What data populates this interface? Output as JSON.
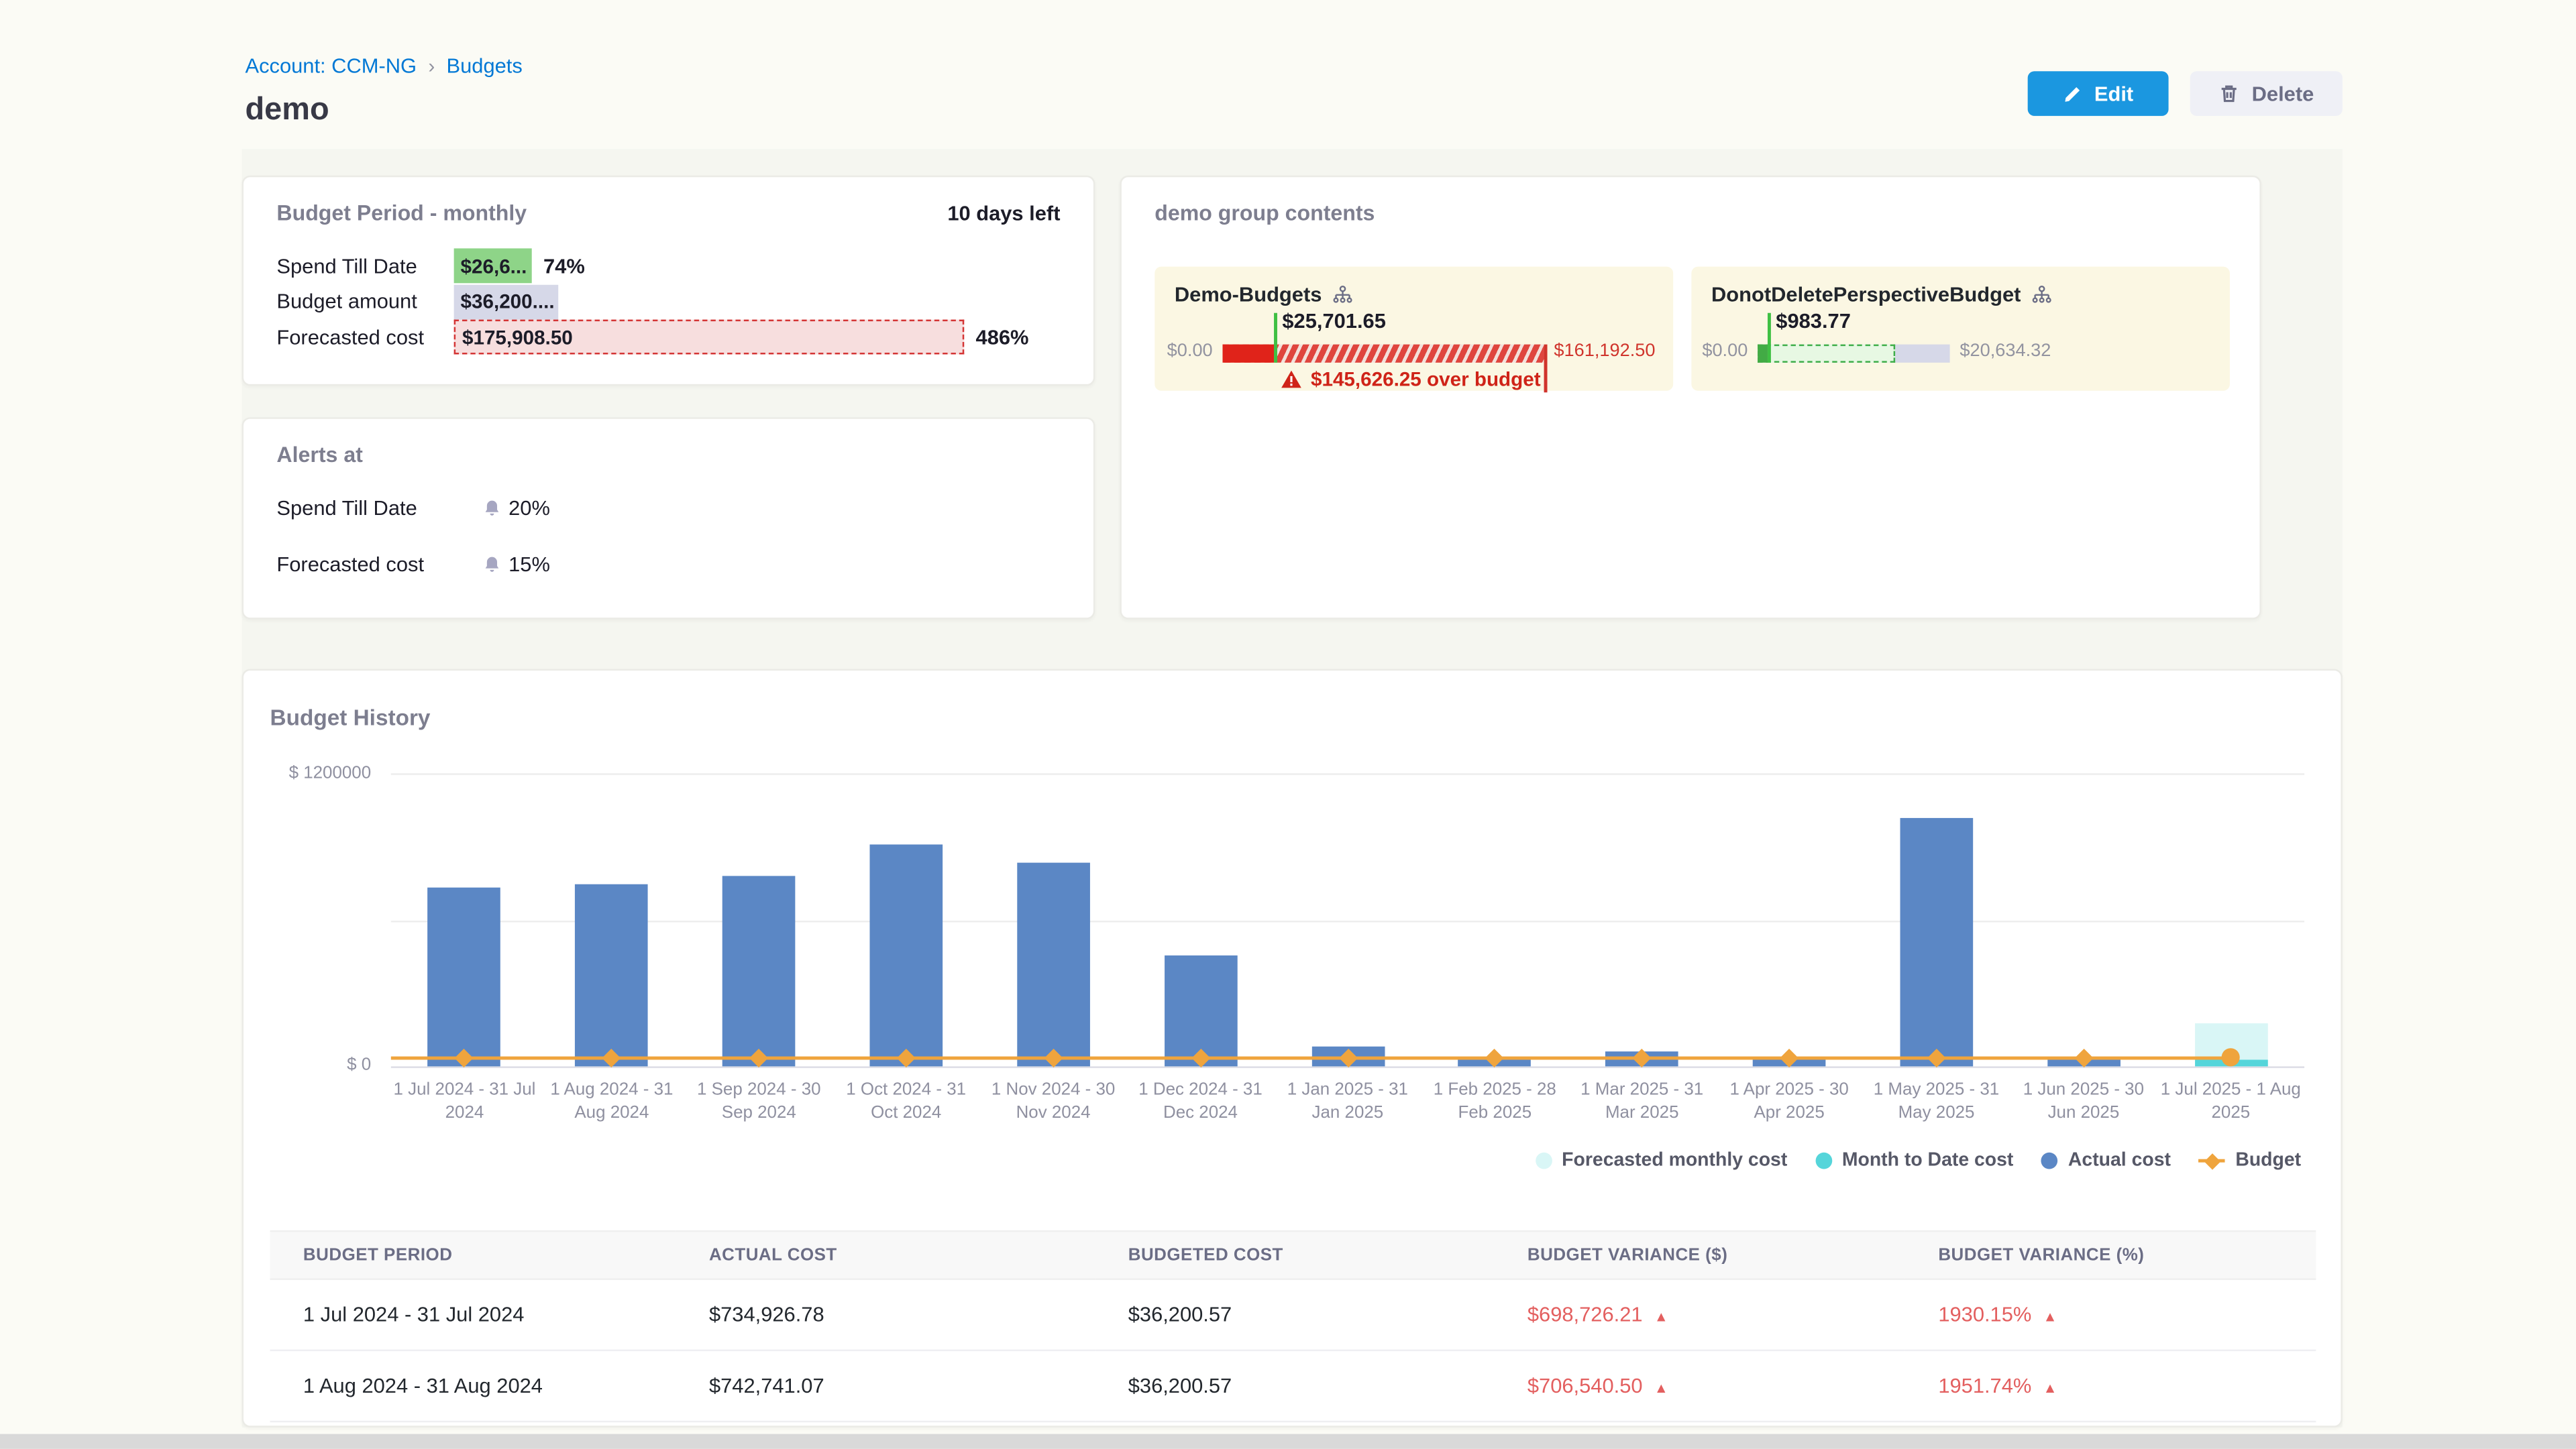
{
  "breadcrumb": {
    "account": "Account: CCM-NG",
    "separator": "›",
    "section": "Budgets"
  },
  "page": {
    "title": "demo"
  },
  "actions": {
    "edit_label": "Edit",
    "delete_label": "Delete"
  },
  "budget_period_card": {
    "title": "Budget Period - monthly",
    "days_left": "10 days left",
    "max_amount": 175908.5,
    "rows": [
      {
        "label": "Spend Till Date",
        "value": "$26,6...",
        "amount": 26600,
        "percent": "74%",
        "type": "green"
      },
      {
        "label": "Budget amount",
        "value": "$36,200....",
        "amount": 36200.57,
        "percent": "",
        "type": "lavender"
      },
      {
        "label": "Forecasted cost",
        "value": "$175,908.50",
        "amount": 175908.5,
        "percent": "486%",
        "type": "pink"
      }
    ]
  },
  "group_card": {
    "title": "demo group contents",
    "items": [
      {
        "name": "Demo-Budgets",
        "value": "$25,701.65",
        "actual": 25701.65,
        "forecast": 161192.5,
        "max": 161192.5,
        "min_label": "$0.00",
        "max_label": "$161,192.50",
        "state": "over",
        "over_label": "$145,626.25 over budget"
      },
      {
        "name": "DonotDeletePerspectiveBudget",
        "value": "$983.77",
        "actual": 983.77,
        "forecast": 14760,
        "max": 20634.32,
        "min_label": "$0.00",
        "max_label": "$20,634.32",
        "state": "under",
        "over_label": ""
      }
    ]
  },
  "alerts_card": {
    "title": "Alerts at",
    "rows": [
      {
        "label": "Spend Till Date",
        "value": "20%"
      },
      {
        "label": "Forecasted cost",
        "value": "15%"
      }
    ]
  },
  "chart_data": {
    "type": "bar",
    "title": "Budget History",
    "categories": [
      "1 Jul 2024 - 31 Jul 2024",
      "1 Aug 2024 - 31 Aug 2024",
      "1 Sep 2024 - 30 Sep 2024",
      "1 Oct 2024 - 31 Oct 2024",
      "1 Nov 2024 - 30 Nov 2024",
      "1 Dec 2024 - 31 Dec 2024",
      "1 Jan 2025 - 31 Jan 2025",
      "1 Feb 2025 - 28 Feb 2025",
      "1 Mar 2025 - 31 Mar 2025",
      "1 Apr 2025 - 30 Apr 2025",
      "1 May 2025 - 31 May 2025",
      "1 Jun 2025 - 30 Jun 2025",
      "1 Jul 2025 - 1 Aug 2025"
    ],
    "series": [
      {
        "name": "Forecasted monthly cost",
        "color": "#d9f6f6",
        "marker": "circle",
        "values": [
          0,
          0,
          0,
          0,
          0,
          0,
          0,
          0,
          0,
          0,
          0,
          0,
          175908.5
        ]
      },
      {
        "name": "Month to Date cost",
        "color": "#55d5da",
        "marker": "circle",
        "values": [
          0,
          0,
          0,
          0,
          0,
          0,
          0,
          0,
          0,
          0,
          0,
          0,
          26600
        ]
      },
      {
        "name": "Actual cost",
        "color": "#5b87c5",
        "marker": "circle",
        "values": [
          734926.78,
          742741.07,
          778000,
          906000,
          833000,
          455000,
          80000,
          30000,
          64000,
          34000,
          1020000,
          30000,
          0
        ]
      },
      {
        "name": "Budget",
        "color": "#efa43d",
        "marker": "diamond-line",
        "type": "line",
        "values": [
          36200.57,
          36200.57,
          36200.57,
          36200.57,
          36200.57,
          36200.57,
          36200.57,
          36200.57,
          36200.57,
          36200.57,
          36200.57,
          36200.57,
          36200.57
        ]
      }
    ],
    "ylim": [
      0,
      1200000
    ],
    "gridlines": [
      600000,
      1200000
    ],
    "y_axis": {
      "top_label": "$ 1200000",
      "zero_label": "$ 0"
    },
    "legend_position": "bottom-right",
    "xlabel": "",
    "ylabel": ""
  },
  "table": {
    "columns": [
      "BUDGET PERIOD",
      "ACTUAL COST",
      "BUDGETED COST",
      "BUDGET VARIANCE ($)",
      "BUDGET VARIANCE (%)"
    ],
    "rows": [
      {
        "period": "1 Jul 2024 - 31 Jul 2024",
        "actual": "$734,926.78",
        "budgeted": "$36,200.57",
        "variance_usd": "$698,726.21",
        "variance_pct": "1930.15%",
        "trend": "▲"
      },
      {
        "period": "1 Aug 2024 - 31 Aug 2024",
        "actual": "$742,741.07",
        "budgeted": "$36,200.57",
        "variance_usd": "$706,540.50",
        "variance_pct": "1951.74%",
        "trend": "▲"
      }
    ]
  },
  "colors": {
    "accent_blue": "#0278d5",
    "bar_blue": "#5b87c5",
    "cyan": "#55d5da",
    "light_cyan": "#d9f6f6",
    "orange": "#efa43d",
    "green": "#8ed488",
    "red": "#cf2318",
    "variance_red": "#e35f5f",
    "lavender": "#d6d8e8",
    "item_bg": "#fbf7e3"
  }
}
